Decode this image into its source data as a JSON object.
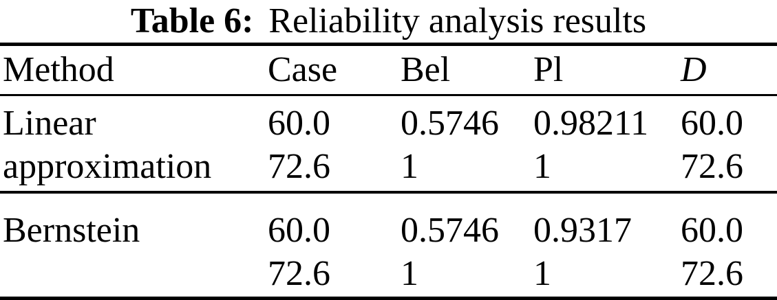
{
  "caption": {
    "label": "Table 6:",
    "text": "Reliability analysis results"
  },
  "table": {
    "columns": [
      "Method",
      "Case",
      "Bel",
      "Pl",
      "D"
    ],
    "groups": [
      {
        "method": "Linear approximation",
        "rows": [
          {
            "case": "60.0",
            "bel": "0.5746",
            "pl": "0.98211",
            "d": "60.0"
          },
          {
            "case": "72.6",
            "bel": "1",
            "pl": "1",
            "d": "72.6"
          }
        ]
      },
      {
        "method": "Bernstein",
        "rows": [
          {
            "case": "60.0",
            "bel": "0.5746",
            "pl": "0.9317",
            "d": "60.0"
          },
          {
            "case": "72.6",
            "bel": "1",
            "pl": "1",
            "d": "72.6"
          }
        ]
      }
    ]
  },
  "colors": {
    "text": "#000000",
    "background": "#ffffff",
    "rule": "#000000"
  }
}
